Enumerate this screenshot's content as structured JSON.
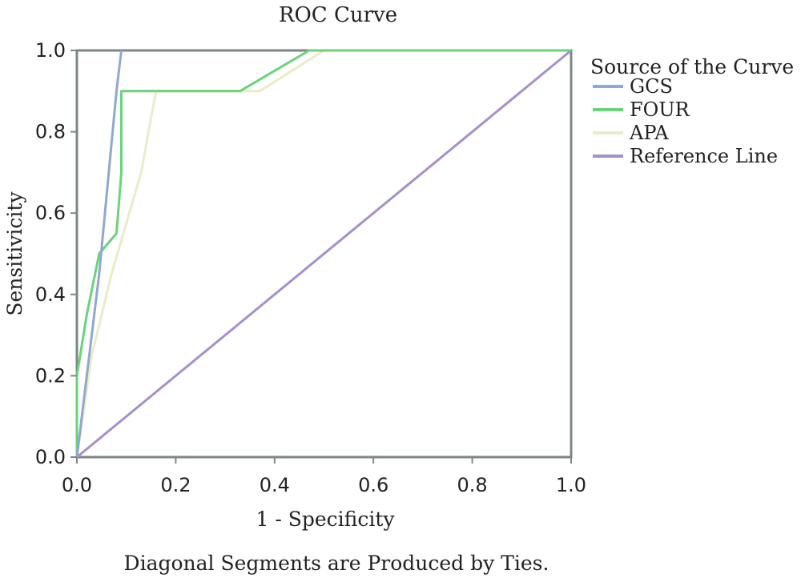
{
  "chart_data": {
    "type": "line",
    "title": "ROC Curve",
    "xlabel": "1 - Specificity",
    "ylabel": "Sensitivicity",
    "xlim": [
      0,
      1
    ],
    "ylim": [
      0,
      1
    ],
    "xticks": [
      "0.0",
      "0.2",
      "0.4",
      "0.6",
      "0.8",
      "1.0"
    ],
    "yticks": [
      "0.0",
      "0.2",
      "0.4",
      "0.6",
      "0.8",
      "1.0"
    ],
    "legend_title": "Source of the Curve",
    "legend_position": "right",
    "grid": false,
    "footnote": "Diagonal Segments are Produced by Ties.",
    "series": [
      {
        "name": "GCS",
        "color": "#8fa8d0",
        "points": [
          [
            0,
            0
          ],
          [
            0.045,
            0.45
          ],
          [
            0.08,
            0.9
          ],
          [
            0.09,
            1.0
          ]
        ]
      },
      {
        "name": "FOUR",
        "color": "#6bd37a",
        "points": [
          [
            0,
            0
          ],
          [
            0,
            0.2
          ],
          [
            0.02,
            0.35
          ],
          [
            0.045,
            0.5
          ],
          [
            0.08,
            0.55
          ],
          [
            0.09,
            0.7
          ],
          [
            0.09,
            0.9
          ],
          [
            0.33,
            0.9
          ],
          [
            0.47,
            1.0
          ],
          [
            1.0,
            1.0
          ]
        ]
      },
      {
        "name": "APA",
        "color": "#e8edc8",
        "points": [
          [
            0,
            0
          ],
          [
            0.03,
            0.25
          ],
          [
            0.07,
            0.45
          ],
          [
            0.13,
            0.7
          ],
          [
            0.16,
            0.9
          ],
          [
            0.37,
            0.9
          ],
          [
            0.5,
            1.0
          ],
          [
            1.0,
            1.0
          ]
        ]
      },
      {
        "name": "Reference Line",
        "color": "#a68fcc",
        "points": [
          [
            0,
            0
          ],
          [
            1,
            1
          ]
        ]
      }
    ]
  }
}
